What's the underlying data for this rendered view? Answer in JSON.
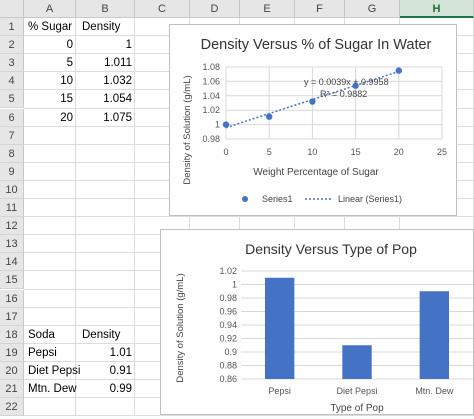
{
  "sheet": {
    "columns": [
      "A",
      "B",
      "C",
      "D",
      "E",
      "F",
      "G",
      "H"
    ],
    "selected_column": "H",
    "rows": [
      "1",
      "2",
      "3",
      "4",
      "5",
      "6",
      "7",
      "8",
      "9",
      "10",
      "11",
      "12",
      "13",
      "14",
      "15",
      "16",
      "17",
      "18",
      "19",
      "20",
      "21",
      "22"
    ]
  },
  "table1": {
    "header_a": "% Sugar",
    "header_b": "Density",
    "rows": [
      {
        "a": "0",
        "b": "1"
      },
      {
        "a": "5",
        "b": "1.011"
      },
      {
        "a": "10",
        "b": "1.032"
      },
      {
        "a": "15",
        "b": "1.054"
      },
      {
        "a": "20",
        "b": "1.075"
      }
    ]
  },
  "table2": {
    "header_a": "Soda",
    "header_b": "Density",
    "rows": [
      {
        "a": "Pepsi",
        "b": "1.01"
      },
      {
        "a": "Diet Pepsi",
        "b": "0.91"
      },
      {
        "a": "Mtn. Dew",
        "b": "0.99"
      }
    ]
  },
  "chart_data": [
    {
      "type": "scatter",
      "title": "Density Versus % of Sugar In Water",
      "xlabel": "Weight Percentage of Sugar",
      "ylabel": "Density of Solution (g/mL)",
      "xlim": [
        0,
        25
      ],
      "ylim": [
        0.98,
        1.08
      ],
      "x_ticks": [
        "0",
        "5",
        "10",
        "15",
        "20",
        "25"
      ],
      "y_ticks": [
        "0.98",
        "1",
        "1.02",
        "1.04",
        "1.06",
        "1.08"
      ],
      "series": [
        {
          "name": "Series1",
          "x": [
            0,
            5,
            10,
            15,
            20
          ],
          "y": [
            1,
            1.011,
            1.032,
            1.054,
            1.075
          ]
        }
      ],
      "trendline": {
        "name": "Linear (Series1)",
        "slope": 0.0039,
        "intercept": 0.9958
      },
      "equation_label": "y = 0.0039x + 0.9958",
      "r2_label": "R² = 0.9882",
      "legend_position": "bottom",
      "grid": true,
      "color": "#4472c4"
    },
    {
      "type": "bar",
      "title": "Density Versus Type of Pop",
      "xlabel": "Type of Pop",
      "ylabel": "Density of Solution (g/mL)",
      "categories": [
        "Pepsi",
        "Diet Pepsi",
        "Mtn. Dew"
      ],
      "values": [
        1.01,
        0.91,
        0.99
      ],
      "ylim": [
        0.86,
        1.02
      ],
      "y_ticks": [
        "0.86",
        "0.88",
        "0.9",
        "0.92",
        "0.94",
        "0.96",
        "0.98",
        "1",
        "1.02"
      ],
      "grid": true,
      "color": "#4472c4"
    }
  ]
}
